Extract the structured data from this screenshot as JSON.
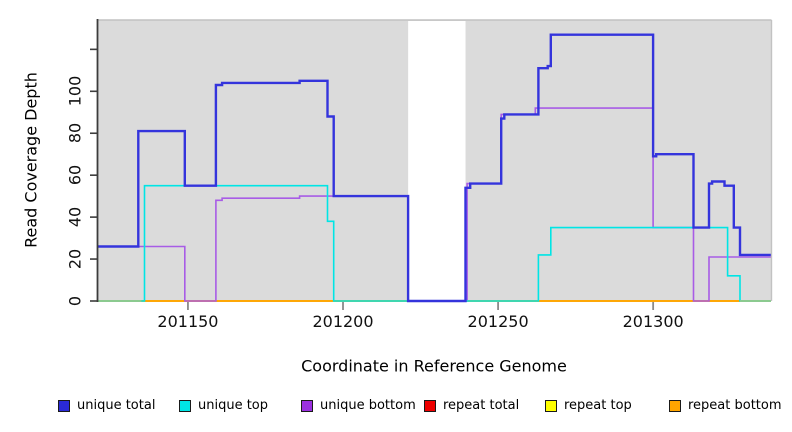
{
  "chart_data": {
    "type": "line",
    "subtype": "step-coverage",
    "title": "",
    "xlabel": "Coordinate in Reference Genome",
    "ylabel": "Read Coverage Depth",
    "panel_background": "#dbdbdb",
    "outer_background": "#ffffff",
    "x_range": [
      201121,
      201338
    ],
    "y_range": [
      0,
      134
    ],
    "x_ticks": [
      {
        "value": 201150,
        "label": "201150"
      },
      {
        "value": 201200,
        "label": "201200"
      },
      {
        "value": 201250,
        "label": "201250"
      },
      {
        "value": 201300,
        "label": "201300"
      }
    ],
    "y_ticks": [
      {
        "value": 0,
        "label": "0"
      },
      {
        "value": 20,
        "label": "20"
      },
      {
        "value": 40,
        "label": "40"
      },
      {
        "value": 60,
        "label": "60"
      },
      {
        "value": 80,
        "label": "80"
      },
      {
        "value": 100,
        "label": "100"
      },
      {
        "value": 120,
        "label": ""
      }
    ],
    "gap_region": {
      "start": 201221,
      "end": 201239.5,
      "color": "#ffffff"
    },
    "series": [
      {
        "name": "repeat total",
        "color": "#ee0000",
        "width": 1.6,
        "z": 0,
        "points": [
          [
            201121,
            0
          ]
        ],
        "end": 201338
      },
      {
        "name": "repeat top",
        "color": "#ffff00",
        "width": 1.6,
        "z": 0,
        "points": [
          [
            201121,
            0
          ]
        ],
        "end": 201338
      },
      {
        "name": "repeat bottom",
        "color": "#ffa500",
        "width": 1.8,
        "z": 0,
        "points": [
          [
            201135,
            0
          ]
        ],
        "end": 201328
      },
      {
        "name": "unique bottom",
        "color": "#a85ce6",
        "width": 1.6,
        "z": 0,
        "points": [
          [
            201121,
            26
          ],
          [
            201149,
            0
          ],
          [
            201159,
            48
          ],
          [
            201161,
            49
          ],
          [
            201186,
            50
          ],
          [
            201221,
            0
          ],
          [
            201240,
            56
          ],
          [
            201251,
            89
          ],
          [
            201262,
            92
          ],
          [
            201300,
            35
          ],
          [
            201313,
            0
          ],
          [
            201318,
            21
          ]
        ],
        "end": 201338
      },
      {
        "name": "unique top",
        "color": "#00e5e5",
        "width": 1.6,
        "z": 0,
        "points": [
          [
            201121,
            0
          ],
          [
            201136,
            55
          ],
          [
            201195,
            38
          ],
          [
            201197,
            0
          ],
          [
            201263,
            22
          ],
          [
            201267,
            35
          ],
          [
            201324,
            12
          ],
          [
            201328,
            0
          ]
        ],
        "end": 201338
      },
      {
        "name": "baseline left",
        "color": "#8fc98f",
        "width": 1.8,
        "z": 0,
        "points": [
          [
            201121,
            0
          ]
        ],
        "end": 201135
      },
      {
        "name": "baseline right",
        "color": "#8fc98f",
        "width": 1.8,
        "z": 0,
        "points": [
          [
            201328,
            0
          ]
        ],
        "end": 201338
      },
      {
        "name": "unique total",
        "color": "#3434dc",
        "width": 2.4,
        "z": 1,
        "points": [
          [
            201121,
            26
          ],
          [
            201134,
            81
          ],
          [
            201149,
            55
          ],
          [
            201159,
            103
          ],
          [
            201161,
            104
          ],
          [
            201186,
            105
          ],
          [
            201195,
            88
          ],
          [
            201197,
            50
          ],
          [
            201221,
            0
          ],
          [
            201239.5,
            54
          ],
          [
            201241,
            56
          ],
          [
            201251,
            87
          ],
          [
            201252,
            89
          ],
          [
            201263,
            111
          ],
          [
            201266,
            112
          ],
          [
            201267,
            127
          ],
          [
            201300,
            69
          ],
          [
            201301,
            70
          ],
          [
            201313,
            35
          ],
          [
            201318,
            56
          ],
          [
            201319,
            57
          ],
          [
            201323,
            55
          ],
          [
            201326,
            35
          ],
          [
            201328,
            22
          ]
        ],
        "end": 201338
      }
    ],
    "legend": [
      {
        "label": "unique total",
        "color": "#2a2ad6"
      },
      {
        "label": "unique top",
        "color": "#00e5e5"
      },
      {
        "label": "unique bottom",
        "color": "#9b30e0"
      },
      {
        "label": "repeat total",
        "color": "#ee0000"
      },
      {
        "label": "repeat top",
        "color": "#ffff00"
      },
      {
        "label": "repeat bottom",
        "color": "#ffa500"
      }
    ],
    "legend_position": "bottom-horizontal",
    "grid": false
  }
}
